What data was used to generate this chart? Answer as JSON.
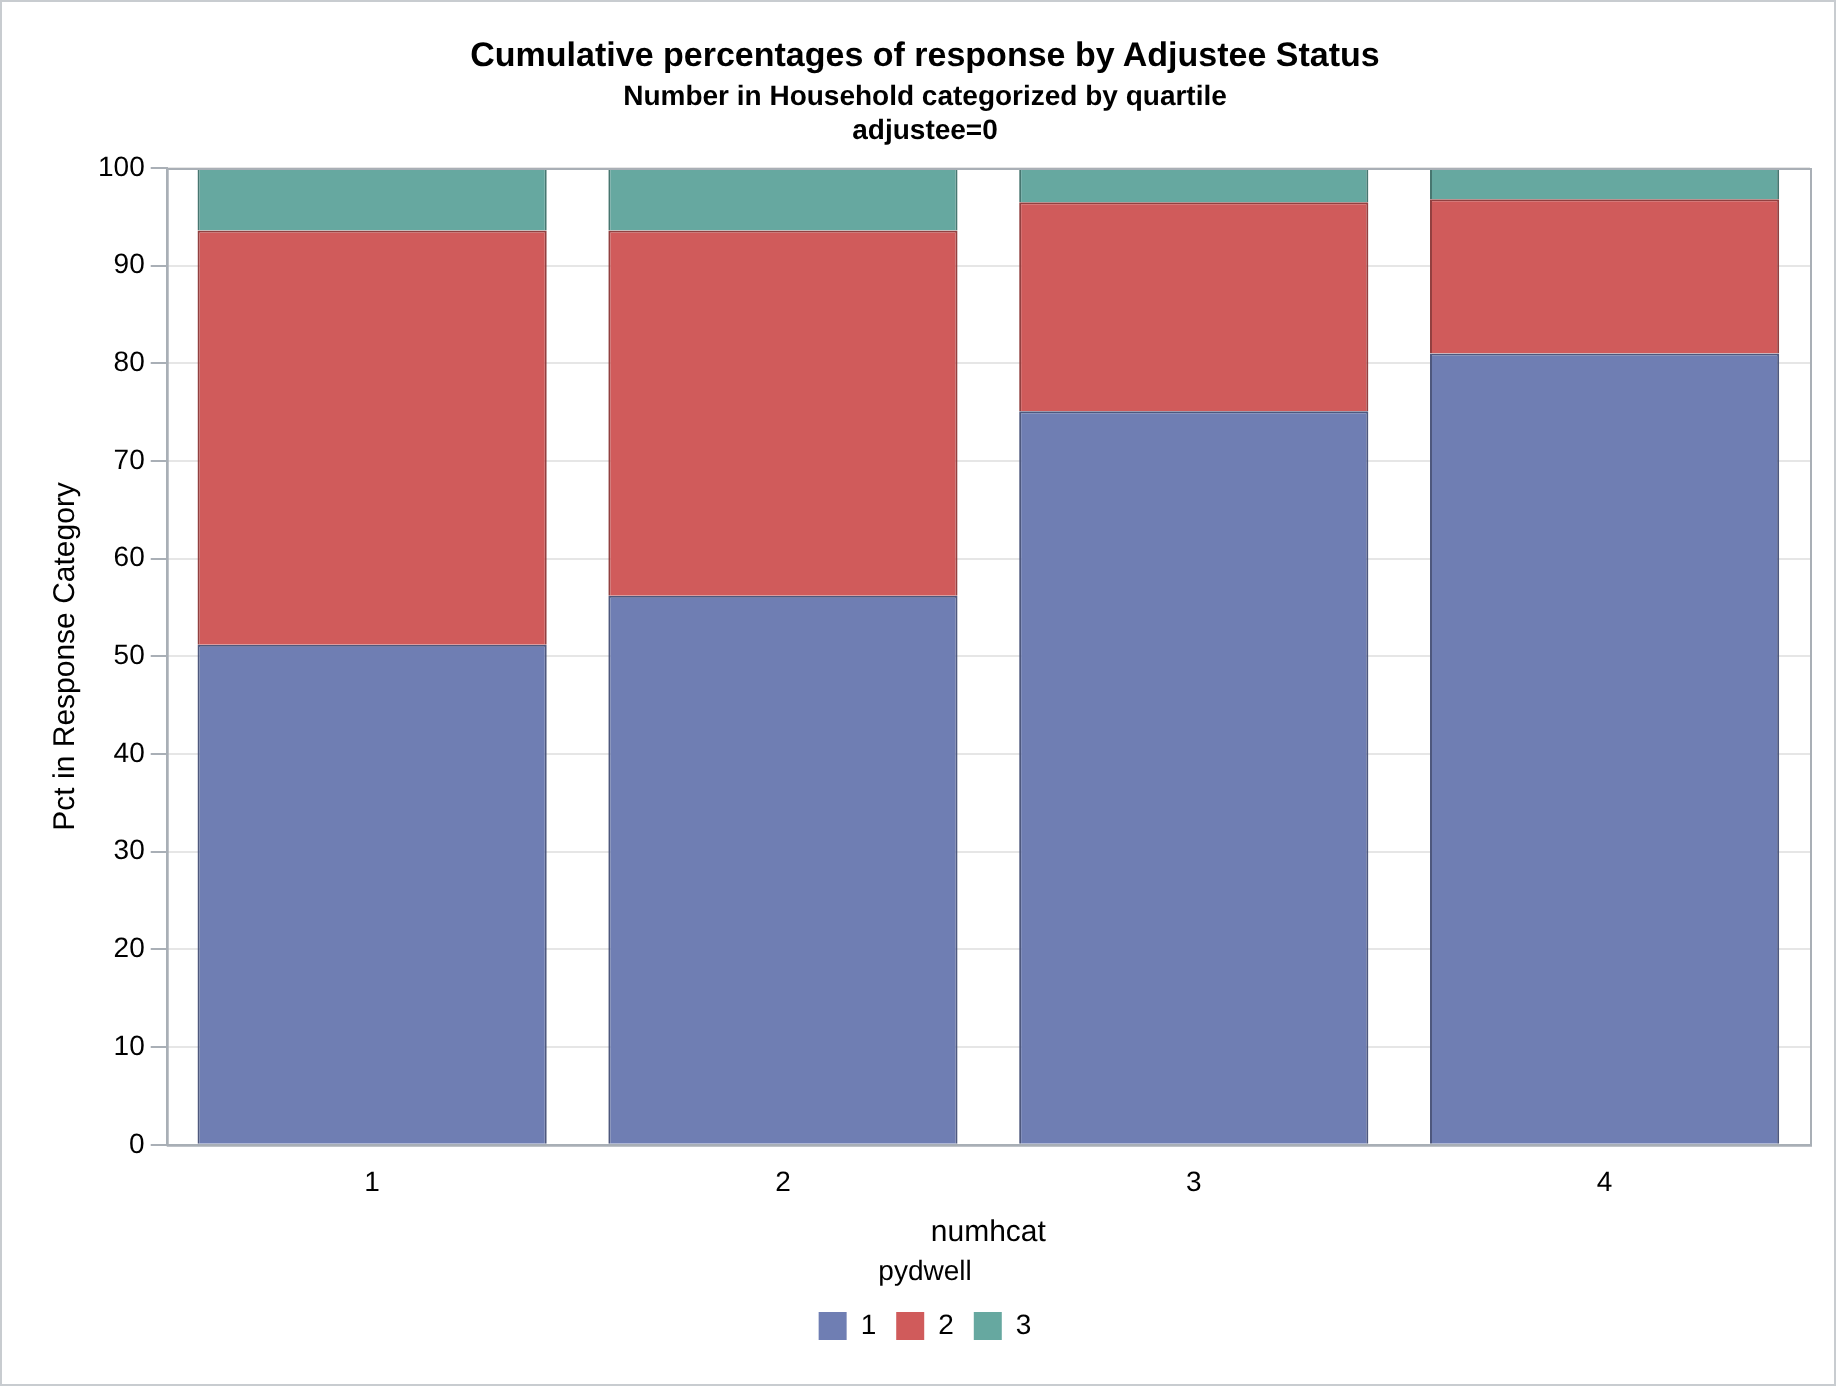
{
  "chart_data": {
    "type": "bar",
    "stacked": true,
    "title": "Cumulative percentages of response by Adjustee Status",
    "subtitle": "Number in Household categorized by quartile",
    "annotations": [
      "adjustee=0"
    ],
    "xlabel": "numhcat",
    "ylabel": "Pct in Response Category",
    "legend_title": "pydwell",
    "legend": "bottom",
    "grid": "y",
    "categories": [
      "1",
      "2",
      "3",
      "4"
    ],
    "ylim": [
      0,
      100
    ],
    "yticks": [
      0,
      10,
      20,
      30,
      40,
      50,
      60,
      70,
      80,
      90,
      100
    ],
    "series": [
      {
        "name": "1",
        "color": "#6f7eb3",
        "values": [
          51.2,
          56.2,
          75.1,
          81.0
        ]
      },
      {
        "name": "2",
        "color": "#d05b5b",
        "values": [
          42.4,
          37.4,
          21.4,
          15.8
        ]
      },
      {
        "name": "3",
        "color": "#66a8a0",
        "values": [
          6.4,
          6.4,
          3.5,
          3.2
        ]
      }
    ]
  }
}
